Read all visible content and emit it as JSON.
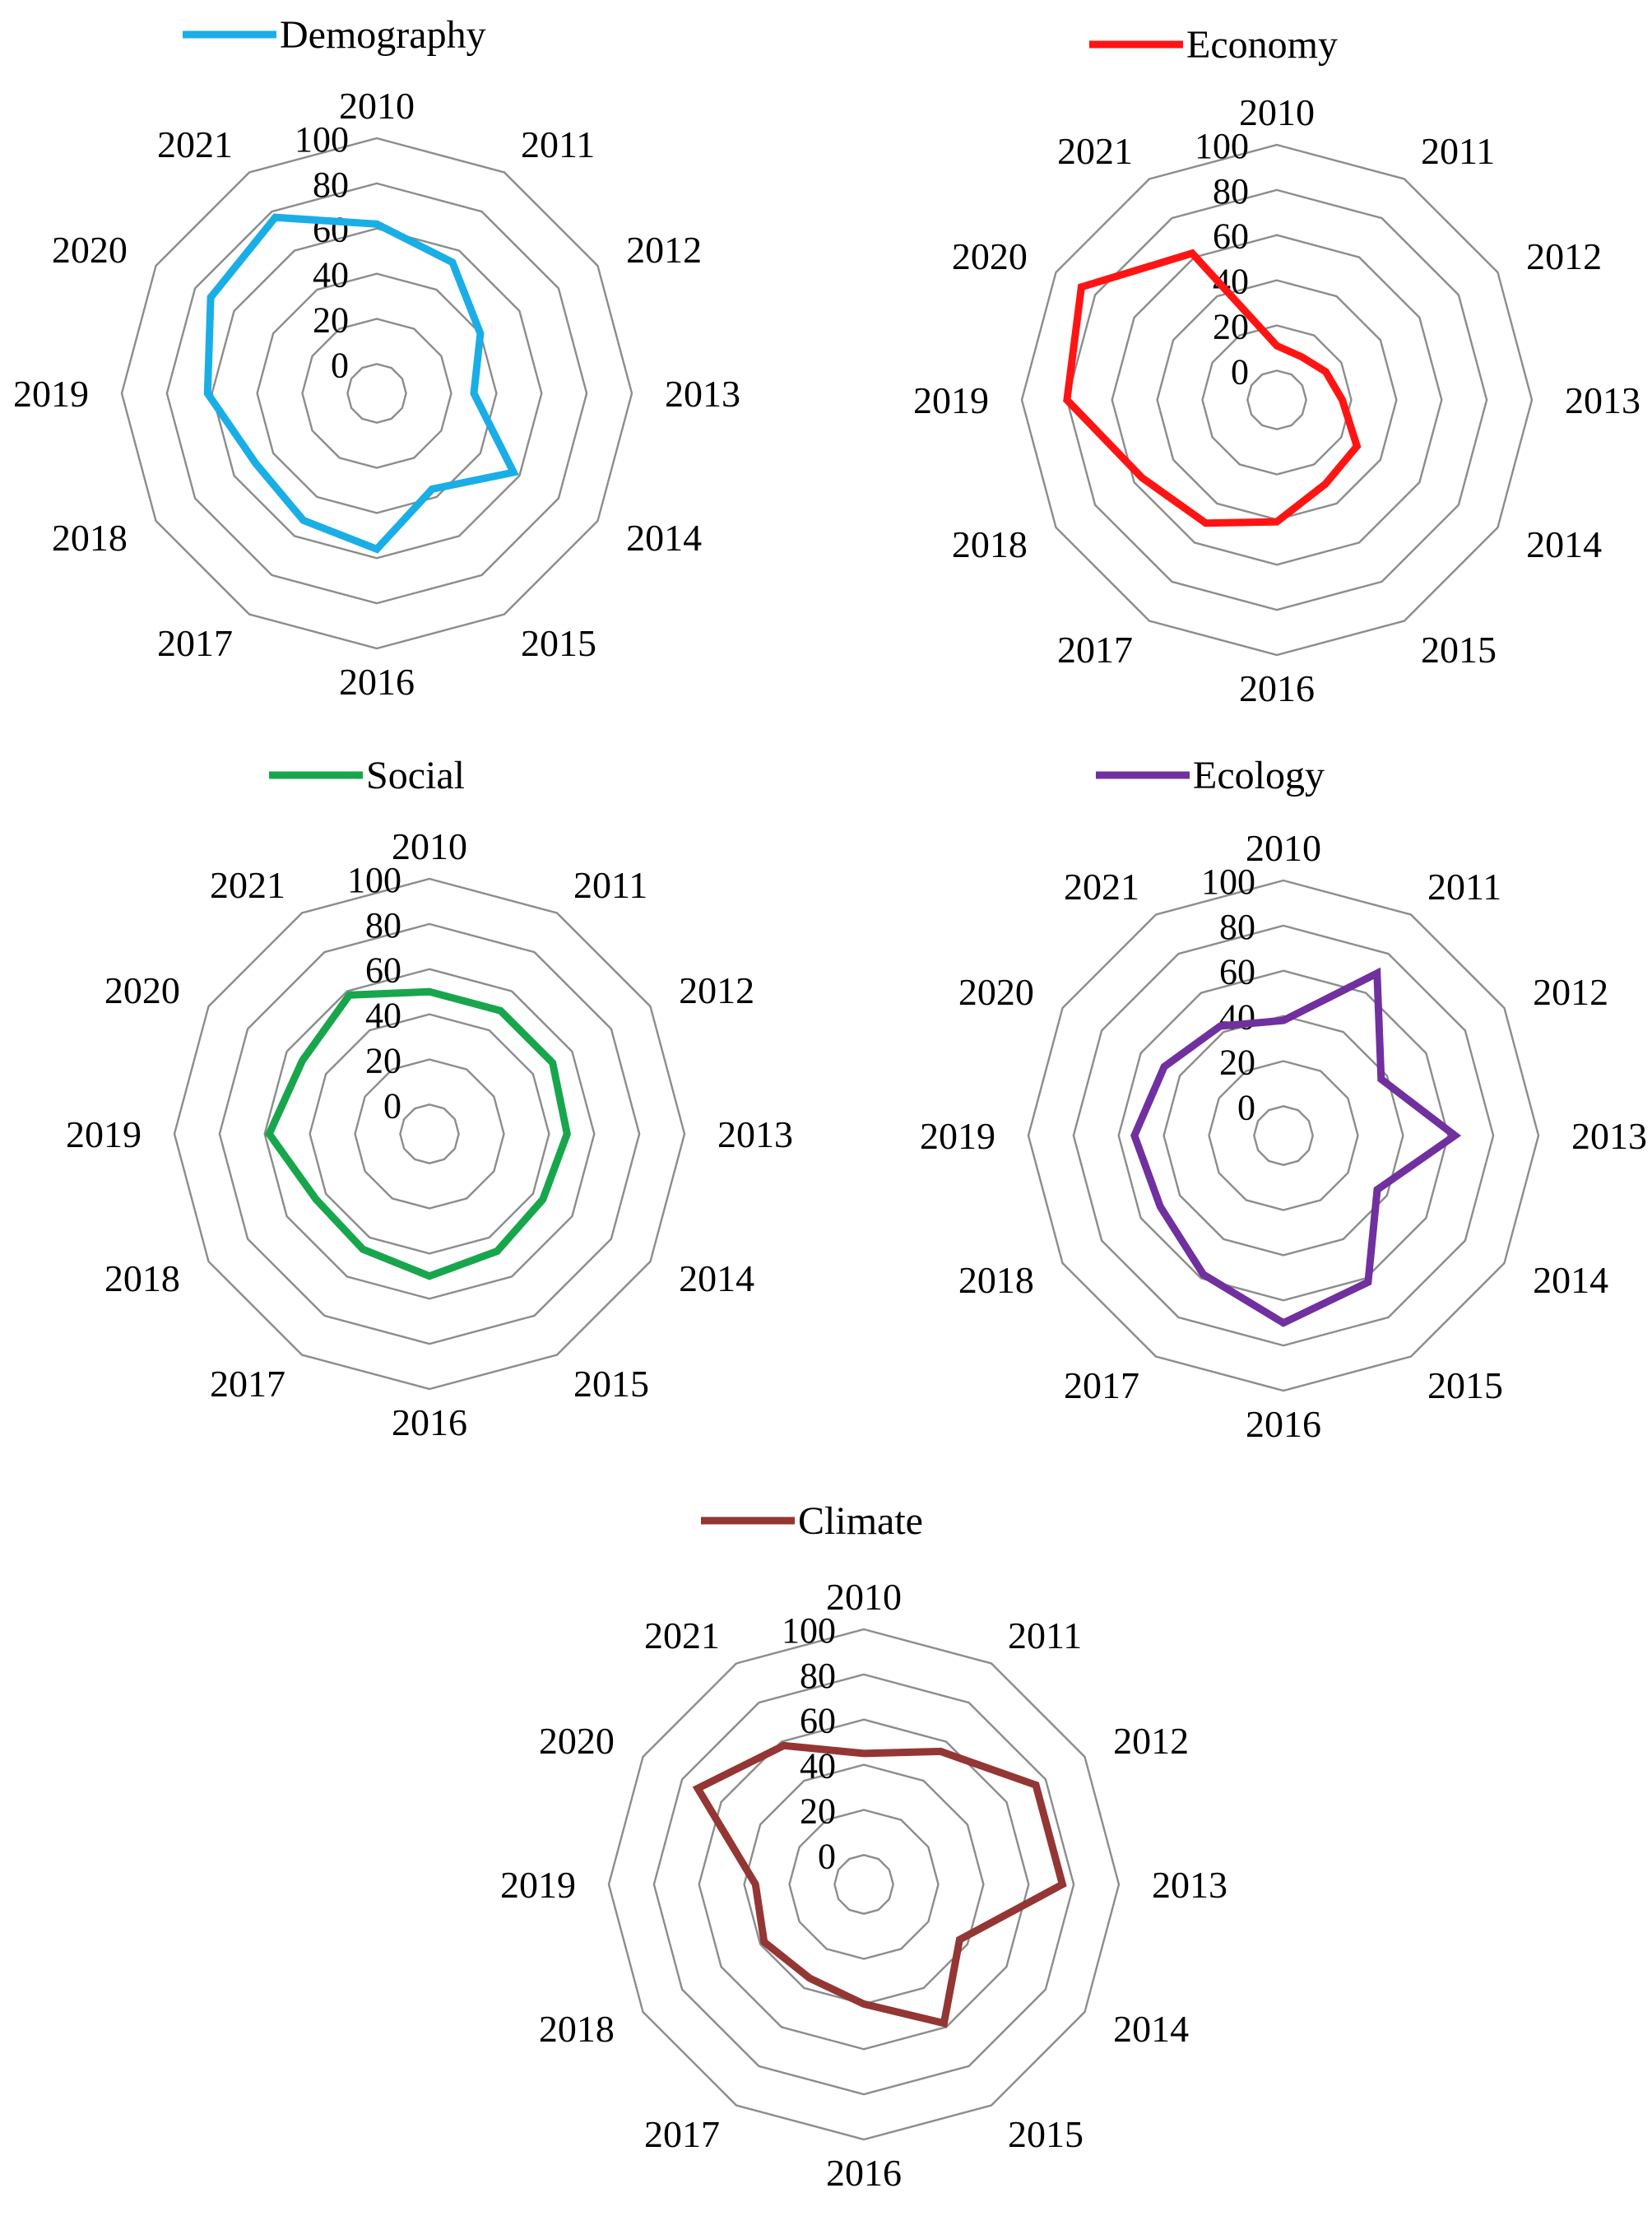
{
  "chart_data": [
    {
      "type": "radar",
      "title": "",
      "legend": "top",
      "categories": [
        "2010",
        "2011",
        "2012",
        "2013",
        "2014",
        "2015",
        "2016",
        "2017",
        "2018",
        "2019",
        "2020",
        "2021"
      ],
      "radial_ticks": [
        "0",
        "20",
        "40",
        "60",
        "80",
        "100"
      ],
      "rlim": [
        0,
        100
      ],
      "series": [
        {
          "name": "Demography",
          "color": "#1AAEE6",
          "values": [
            62,
            54,
            40,
            30,
            57,
            36,
            56,
            52,
            49,
            62,
            72,
            77
          ]
        }
      ]
    },
    {
      "type": "radar",
      "title": "",
      "legend": "top",
      "categories": [
        "2010",
        "2011",
        "2012",
        "2013",
        "2014",
        "2015",
        "2016",
        "2017",
        "2018",
        "2019",
        "2020",
        "2021"
      ],
      "radial_ticks": [
        "0",
        "20",
        "40",
        "60",
        "80",
        "100"
      ],
      "rlim": [
        0,
        100
      ],
      "series": [
        {
          "name": "Economy",
          "color": "#FF1414",
          "values": [
            11,
            9,
            12,
            16,
            28,
            30,
            41,
            50,
            56,
            80,
            87,
            62
          ]
        }
      ]
    },
    {
      "type": "radar",
      "title": "",
      "legend": "top",
      "categories": [
        "2010",
        "2011",
        "2012",
        "2013",
        "2014",
        "2015",
        "2016",
        "2017",
        "2018",
        "2019",
        "2020",
        "2021"
      ],
      "radial_ticks": [
        "0",
        "20",
        "40",
        "60",
        "80",
        "100"
      ],
      "rlim": [
        0,
        100
      ],
      "series": [
        {
          "name": "Social",
          "color": "#18A64C",
          "values": [
            50,
            50,
            50,
            48,
            45,
            47,
            50,
            46,
            45,
            58,
            52,
            58
          ]
        }
      ]
    },
    {
      "type": "radar",
      "title": "",
      "legend": "top",
      "categories": [
        "2010",
        "2011",
        "2012",
        "2013",
        "2014",
        "2015",
        "2016",
        "2017",
        "2018",
        "2019",
        "2020",
        "2021"
      ],
      "radial_ticks": [
        "0",
        "20",
        "40",
        "60",
        "80",
        "100"
      ],
      "rlim": [
        0,
        100
      ],
      "series": [
        {
          "name": "Ecology",
          "color": "#7030A0",
          "values": [
            38,
            70,
            37,
            63,
            35,
            62,
            70,
            58,
            50,
            53,
            48,
            43
          ]
        }
      ]
    },
    {
      "type": "radar",
      "title": "",
      "legend": "top",
      "categories": [
        "2010",
        "2011",
        "2012",
        "2013",
        "2014",
        "2015",
        "2016",
        "2017",
        "2018",
        "2019",
        "2020",
        "2021"
      ],
      "radial_ticks": [
        "0",
        "20",
        "40",
        "60",
        "80",
        "100"
      ],
      "rlim": [
        0,
        100
      ],
      "series": [
        {
          "name": "Climate",
          "color": "#943634",
          "values": [
            45,
            55,
            75,
            75,
            36,
            58,
            40,
            35,
            38,
            35,
            72,
            58
          ]
        }
      ]
    }
  ]
}
